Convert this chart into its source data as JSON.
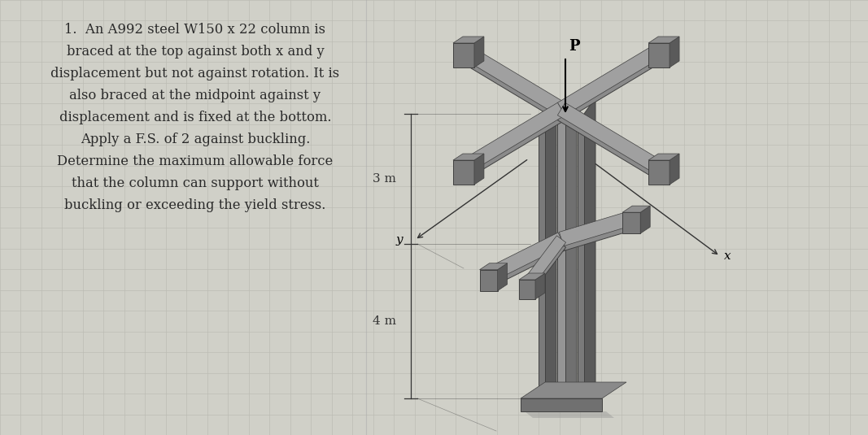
{
  "background_color": "#d0d0c8",
  "text_color": "#2a2a2a",
  "problem_text_lines": [
    "1.  An A992 steel W150 x 22 column is",
    "braced at the top against both x and y",
    "displacement but not against rotation. It is",
    "also braced at the midpoint against y",
    "displacement and is fixed at the bottom.",
    "Apply a F.S. of 2 against buckling.",
    "Determine the maximum allowable force",
    "that the column can support without",
    "buckling or exceeding the yield stress."
  ],
  "font_size": 11.8,
  "grid_color": "#bcbcb4",
  "dark_grid_color": "#b0b0a8",
  "label_P": "P",
  "label_x": "x",
  "label_y": "y",
  "label_3m": "3 m",
  "label_4m": "4 m"
}
